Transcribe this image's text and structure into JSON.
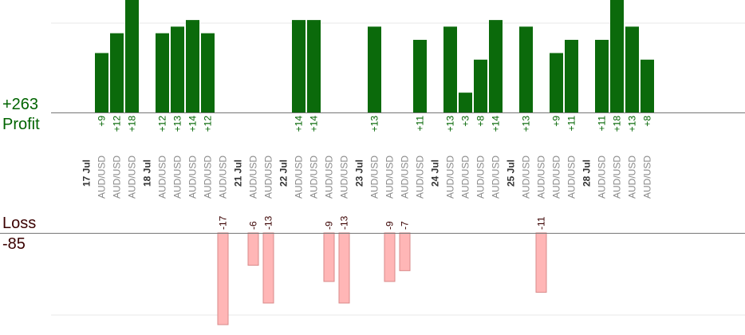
{
  "summary": {
    "profit_total": "+263",
    "profit_label": "Profit",
    "loss_label": "Loss",
    "loss_total": "-85"
  },
  "colors": {
    "profit_bar": "#0b6a0b",
    "loss_bar": "#ffb6b6",
    "profit_text": "#006400",
    "loss_text": "#3a0000",
    "date_text": "#333333",
    "pair_text": "#888888",
    "axis": "#777777",
    "grid": "#e8e8e8"
  },
  "chart_data": {
    "type": "bar",
    "ylim_profit": [
      0,
      18
    ],
    "ylim_loss": [
      0,
      17
    ],
    "entries": [
      {
        "kind": "date",
        "label": "17 Jul"
      },
      {
        "kind": "trade",
        "pair": "AUD/USD",
        "value": 9,
        "label": "+9"
      },
      {
        "kind": "trade",
        "pair": "AUD/USD",
        "value": 12,
        "label": "+12"
      },
      {
        "kind": "trade",
        "pair": "AUD/USD",
        "value": 18,
        "label": "+18"
      },
      {
        "kind": "date",
        "label": "18 Jul"
      },
      {
        "kind": "trade",
        "pair": "AUD/USD",
        "value": 12,
        "label": "+12"
      },
      {
        "kind": "trade",
        "pair": "AUD/USD",
        "value": 13,
        "label": "+13"
      },
      {
        "kind": "trade",
        "pair": "AUD/USD",
        "value": 14,
        "label": "+14"
      },
      {
        "kind": "trade",
        "pair": "AUD/USD",
        "value": 12,
        "label": "+12"
      },
      {
        "kind": "trade",
        "pair": "AUD/USD",
        "value": -17,
        "label": "-17"
      },
      {
        "kind": "date",
        "label": "21 Jul"
      },
      {
        "kind": "trade",
        "pair": "AUD/USD",
        "value": -6,
        "label": "-6"
      },
      {
        "kind": "trade",
        "pair": "AUD/USD",
        "value": -13,
        "label": "-13"
      },
      {
        "kind": "date",
        "label": "22 Jul"
      },
      {
        "kind": "trade",
        "pair": "AUD/USD",
        "value": 14,
        "label": "+14"
      },
      {
        "kind": "trade",
        "pair": "AUD/USD",
        "value": 14,
        "label": "+14"
      },
      {
        "kind": "trade",
        "pair": "AUD/USD",
        "value": -9,
        "label": "-9"
      },
      {
        "kind": "trade",
        "pair": "AUD/USD",
        "value": -13,
        "label": "-13"
      },
      {
        "kind": "date",
        "label": "23 Jul"
      },
      {
        "kind": "trade",
        "pair": "AUD/USD",
        "value": 13,
        "label": "+13"
      },
      {
        "kind": "trade",
        "pair": "AUD/USD",
        "value": -9,
        "label": "-9"
      },
      {
        "kind": "trade",
        "pair": "AUD/USD",
        "value": -7,
        "label": "-7"
      },
      {
        "kind": "trade",
        "pair": "AUD/USD",
        "value": 11,
        "label": "+11"
      },
      {
        "kind": "date",
        "label": "24 Jul"
      },
      {
        "kind": "trade",
        "pair": "AUD/USD",
        "value": 13,
        "label": "+13"
      },
      {
        "kind": "trade",
        "pair": "AUD/USD",
        "value": 3,
        "label": "+3"
      },
      {
        "kind": "trade",
        "pair": "AUD/USD",
        "value": 8,
        "label": "+8"
      },
      {
        "kind": "trade",
        "pair": "AUD/USD",
        "value": 14,
        "label": "+14"
      },
      {
        "kind": "date",
        "label": "25 Jul"
      },
      {
        "kind": "trade",
        "pair": "AUD/USD",
        "value": 13,
        "label": "+13"
      },
      {
        "kind": "trade",
        "pair": "AUD/USD",
        "value": -11,
        "label": "-11"
      },
      {
        "kind": "trade",
        "pair": "AUD/USD",
        "value": 9,
        "label": "+9"
      },
      {
        "kind": "trade",
        "pair": "AUD/USD",
        "value": 11,
        "label": "+11"
      },
      {
        "kind": "date",
        "label": "28 Jul"
      },
      {
        "kind": "trade",
        "pair": "AUD/USD",
        "value": 11,
        "label": "+11"
      },
      {
        "kind": "trade",
        "pair": "AUD/USD",
        "value": 18,
        "label": "+18"
      },
      {
        "kind": "trade",
        "pair": "AUD/USD",
        "value": 13,
        "label": "+13"
      },
      {
        "kind": "trade",
        "pair": "AUD/USD",
        "value": 8,
        "label": "+8"
      }
    ]
  }
}
